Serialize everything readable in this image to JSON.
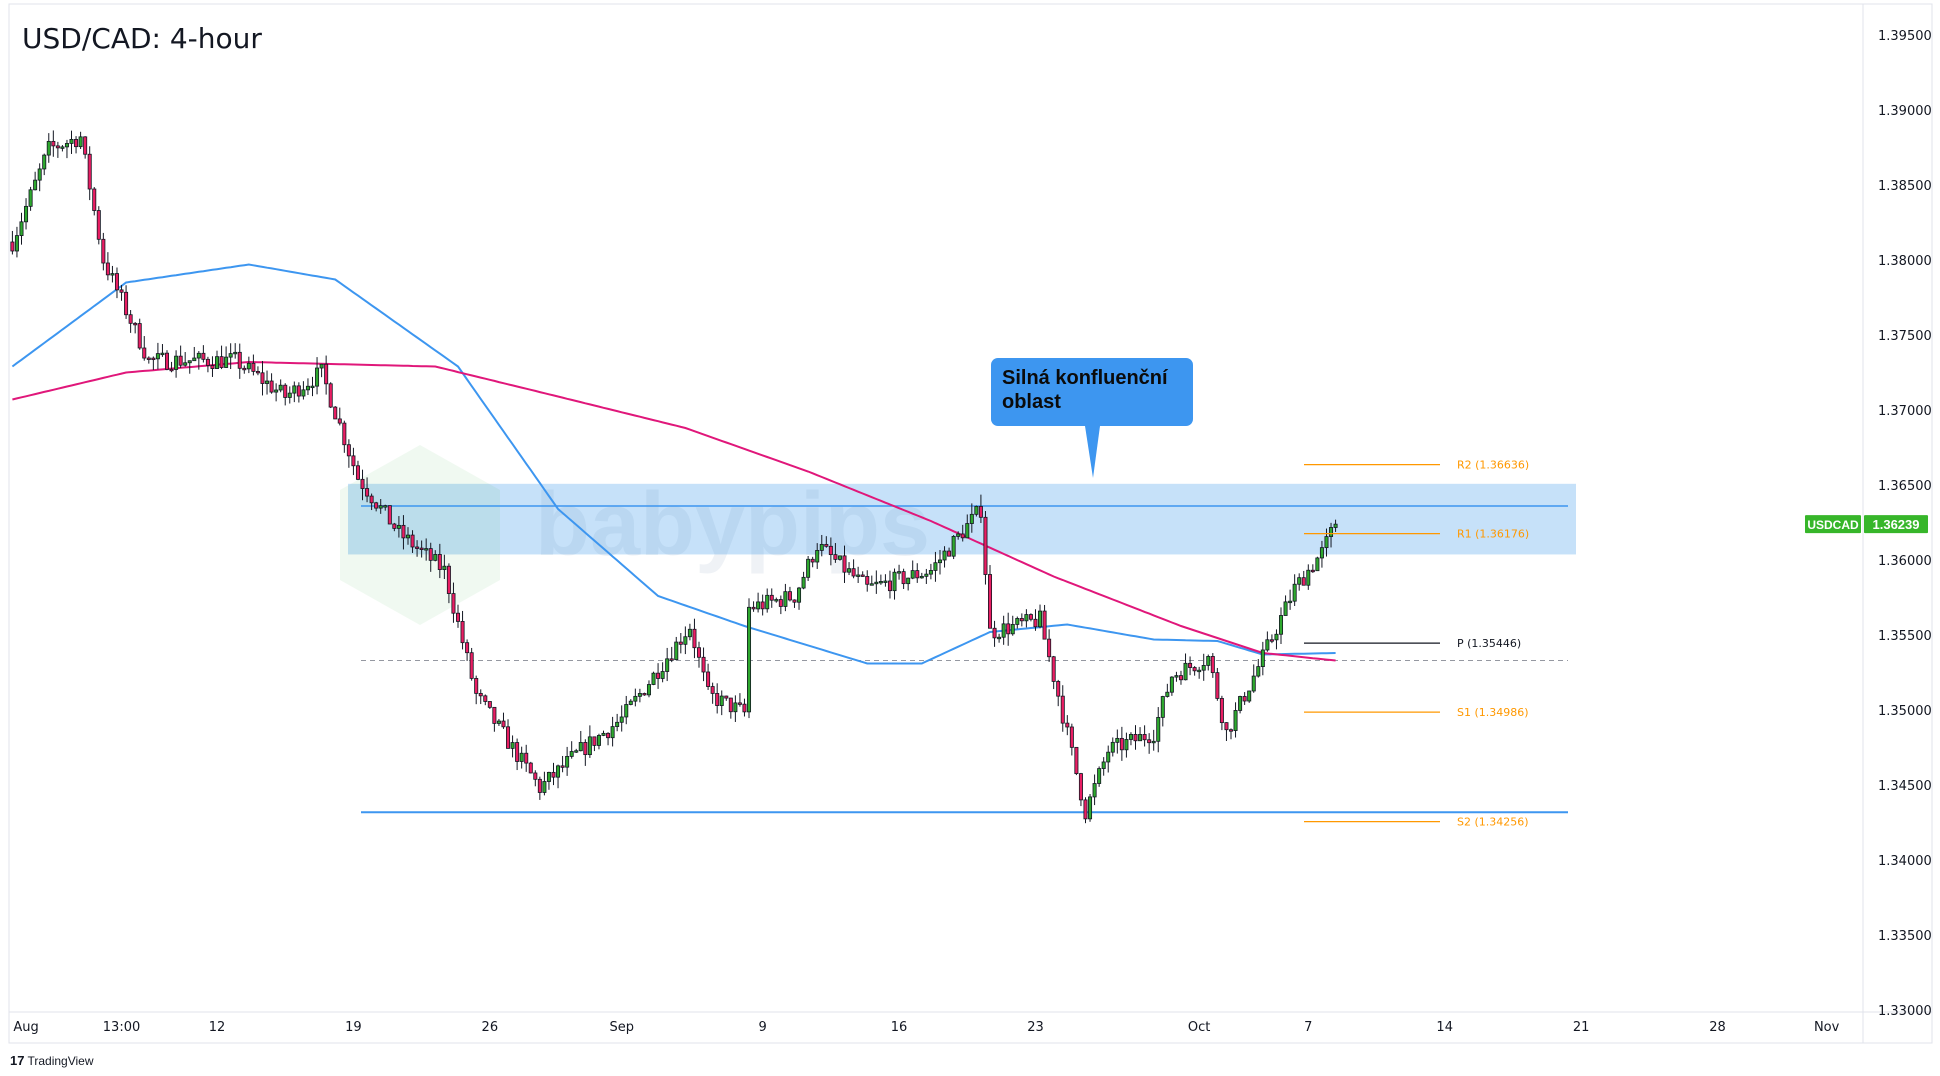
{
  "title": "USD/CAD: 4-hour",
  "branding": {
    "tradingview": "TradingView",
    "watermark": "babypips"
  },
  "callout": {
    "text": "Silná konfluenční oblast"
  },
  "colors": {
    "bull": "#2ea82e",
    "bear": "#e91e63",
    "ma_fast": "#3d96f0",
    "ma_slow": "#e0177a",
    "pivot": "#ff9800",
    "zone": "#c3dff9",
    "badge": "#37b62a"
  },
  "chart_data": {
    "type": "candlestick",
    "symbol": "USDCAD",
    "last_price": "1.36239",
    "ylim": [
      1.33,
      1.3975
    ],
    "y_ticks": [
      "1.39500",
      "1.39000",
      "1.38500",
      "1.38000",
      "1.37500",
      "1.37000",
      "1.36500",
      "1.36000",
      "1.35500",
      "1.35000",
      "1.34500",
      "1.34000",
      "1.33500",
      "1.33000"
    ],
    "x_ticks": [
      {
        "label": "Aug",
        "bar": 3
      },
      {
        "label": "13:00",
        "bar": 24
      },
      {
        "label": "12",
        "bar": 45
      },
      {
        "label": "19",
        "bar": 75
      },
      {
        "label": "26",
        "bar": 105
      },
      {
        "label": "Sep",
        "bar": 134
      },
      {
        "label": "9",
        "bar": 165
      },
      {
        "label": "16",
        "bar": 195
      },
      {
        "label": "23",
        "bar": 225
      },
      {
        "label": "Oct",
        "bar": 261
      },
      {
        "label": "7",
        "bar": 285
      },
      {
        "label": "14",
        "bar": 315
      },
      {
        "label": "21",
        "bar": 345
      },
      {
        "label": "28",
        "bar": 375
      },
      {
        "label": "Nov",
        "bar": 399
      }
    ],
    "price_path": [
      [
        0,
        1.3812
      ],
      [
        8,
        1.3874
      ],
      [
        15,
        1.3882
      ],
      [
        20,
        1.38
      ],
      [
        30,
        1.3733
      ],
      [
        49,
        1.3733
      ],
      [
        60,
        1.3709
      ],
      [
        68,
        1.3725
      ],
      [
        76,
        1.3655
      ],
      [
        85,
        1.3618
      ],
      [
        95,
        1.3593
      ],
      [
        102,
        1.351
      ],
      [
        116,
        1.3448
      ],
      [
        125,
        1.3473
      ],
      [
        134,
        1.3494
      ],
      [
        142,
        1.3527
      ],
      [
        149,
        1.3556
      ],
      [
        153,
        1.351
      ],
      [
        161,
        1.3498
      ],
      [
        162,
        1.3568
      ],
      [
        172,
        1.3576
      ],
      [
        177,
        1.361
      ],
      [
        188,
        1.3581
      ],
      [
        202,
        1.3593
      ],
      [
        213,
        1.3634
      ],
      [
        215,
        1.3552
      ],
      [
        226,
        1.356
      ],
      [
        230,
        1.351
      ],
      [
        236,
        1.3432
      ],
      [
        241,
        1.3473
      ],
      [
        251,
        1.3485
      ],
      [
        255,
        1.3523
      ],
      [
        263,
        1.3535
      ],
      [
        267,
        1.3485
      ],
      [
        275,
        1.3535
      ],
      [
        282,
        1.3581
      ],
      [
        288,
        1.3605
      ],
      [
        291,
        1.3624
      ]
    ],
    "ma_fast": [
      [
        0,
        1.3729
      ],
      [
        25,
        1.3785
      ],
      [
        52,
        1.3797
      ],
      [
        71,
        1.3787
      ],
      [
        98,
        1.3729
      ],
      [
        120,
        1.3634
      ],
      [
        142,
        1.3576
      ],
      [
        161,
        1.3556
      ],
      [
        188,
        1.3531
      ],
      [
        200,
        1.3531
      ],
      [
        215,
        1.3552
      ],
      [
        232,
        1.3557
      ],
      [
        251,
        1.3547
      ],
      [
        265,
        1.3546
      ],
      [
        275,
        1.3537
      ],
      [
        291,
        1.3538
      ]
    ],
    "ma_slow": [
      [
        0,
        1.3707
      ],
      [
        25,
        1.3725
      ],
      [
        52,
        1.3732
      ],
      [
        93,
        1.3729
      ],
      [
        120,
        1.3709
      ],
      [
        148,
        1.3688
      ],
      [
        175,
        1.3659
      ],
      [
        202,
        1.3626
      ],
      [
        229,
        1.3589
      ],
      [
        257,
        1.3556
      ],
      [
        275,
        1.3538
      ],
      [
        291,
        1.3533
      ]
    ],
    "zone": {
      "low": 1.36037,
      "high": 1.36508,
      "mid_line": 1.3636
    },
    "support_line": 1.34318,
    "dashed_line": 1.3533,
    "pivots": [
      {
        "label": "R2 (1.36636)",
        "value": 1.36636,
        "color": "#ff9800"
      },
      {
        "label": "R1 (1.36176)",
        "value": 1.36176,
        "color": "#ff9800"
      },
      {
        "label": "P (1.35446)",
        "value": 1.35446,
        "color": "#131722"
      },
      {
        "label": "S1 (1.34986)",
        "value": 1.34986,
        "color": "#ff9800"
      },
      {
        "label": "S2 (1.34256)",
        "value": 1.34256,
        "color": "#ff9800"
      }
    ]
  }
}
